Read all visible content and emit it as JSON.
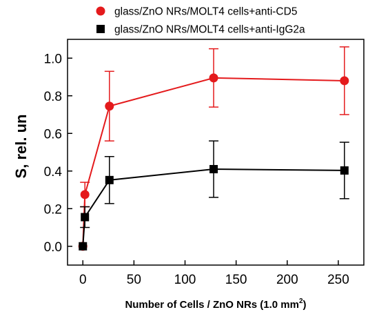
{
  "chart_data": {
    "type": "line",
    "title": "",
    "xlabel": "Number of Cells / ZnO NRs (1.0 mm",
    "xlabel_sup": "2",
    "xlabel_close": ")",
    "ylabel": "S, rel. un",
    "xlim": [
      -15,
      275
    ],
    "ylim": [
      -0.1,
      1.1
    ],
    "xticks": [
      0,
      50,
      100,
      150,
      200,
      250
    ],
    "xtick_labels": [
      "0",
      "50",
      "100",
      "150",
      "200",
      "250"
    ],
    "yticks": [
      0.0,
      0.2,
      0.4,
      0.6,
      0.8,
      1.0
    ],
    "ytick_labels": [
      "0.0",
      "0.2",
      "0.4",
      "0.6",
      "0.8",
      "1.0"
    ],
    "grid": false,
    "legend_position": "top",
    "series": [
      {
        "name": "glass/ZnO NRs/MOLT4 cells+anti-CD5",
        "color": "#e41a1c",
        "marker": "circle",
        "x": [
          0,
          2,
          26,
          128,
          256
        ],
        "y": [
          0.0,
          0.275,
          0.745,
          0.895,
          0.88
        ],
        "err": [
          0.0,
          0.065,
          0.185,
          0.155,
          0.18
        ]
      },
      {
        "name": "glass/ZnO NRs/MOLT4 cells+anti-IgG2a",
        "color": "#000000",
        "marker": "square",
        "x": [
          0,
          2,
          26,
          128,
          256
        ],
        "y": [
          0.0,
          0.155,
          0.352,
          0.41,
          0.403
        ],
        "err": [
          0.0,
          0.055,
          0.125,
          0.15,
          0.15
        ]
      }
    ]
  }
}
